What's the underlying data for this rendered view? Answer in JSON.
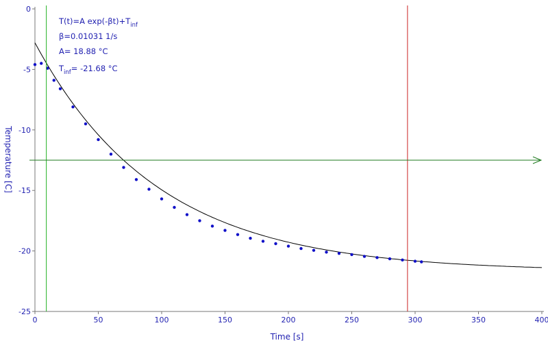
{
  "chart_data": {
    "type": "scatter",
    "title": "",
    "xlabel": "Time [s]",
    "ylabel": "Temperature [C]",
    "xlim": [
      0,
      400
    ],
    "ylim": [
      -25,
      0
    ],
    "x_ticks": [
      0,
      50,
      100,
      150,
      200,
      250,
      300,
      350,
      400
    ],
    "y_ticks": [
      0,
      -5,
      -10,
      -15,
      -20,
      -25
    ],
    "series": [
      {
        "type": "scatter",
        "color": "#1010c8",
        "x": [
          0,
          5,
          10,
          15,
          20,
          30,
          40,
          50,
          60,
          70,
          80,
          90,
          100,
          110,
          120,
          130,
          140,
          150,
          160,
          170,
          180,
          190,
          200,
          210,
          220,
          230,
          240,
          250,
          260,
          270,
          280,
          290,
          300,
          305
        ],
        "y": [
          -4.6,
          -4.5,
          -4.9,
          -5.9,
          -6.6,
          -8.1,
          -9.5,
          -10.8,
          -12.0,
          -13.1,
          -14.1,
          -14.9,
          -15.7,
          -16.4,
          -17.0,
          -17.5,
          -17.95,
          -18.3,
          -18.65,
          -18.95,
          -19.2,
          -19.4,
          -19.6,
          -19.8,
          -19.95,
          -20.1,
          -20.2,
          -20.3,
          -20.45,
          -20.55,
          -20.65,
          -20.75,
          -20.85,
          -20.9
        ]
      },
      {
        "type": "line",
        "color": "#000000",
        "fit": {
          "A": 18.88,
          "beta": 0.01031,
          "T_inf": -21.68
        },
        "x_range": [
          0,
          400
        ]
      }
    ],
    "cursors": [
      {
        "orientation": "vertical",
        "value": 9,
        "color": "#22b022"
      },
      {
        "orientation": "vertical",
        "value": 294,
        "color": "#cc2222"
      },
      {
        "orientation": "horizontal",
        "value": -12.5,
        "color": "#1e7a1e"
      }
    ],
    "annotations": {
      "formula": {
        "main": "T(t)=A exp(-βt)+T",
        "sub": "inf"
      },
      "beta": "β=0.01031 1/s",
      "A": "A= 18.88 °C",
      "tinf": {
        "main": "T",
        "sub": "inf",
        "rest": "= -21.68 °C"
      }
    },
    "grid": false,
    "legend": "none"
  }
}
